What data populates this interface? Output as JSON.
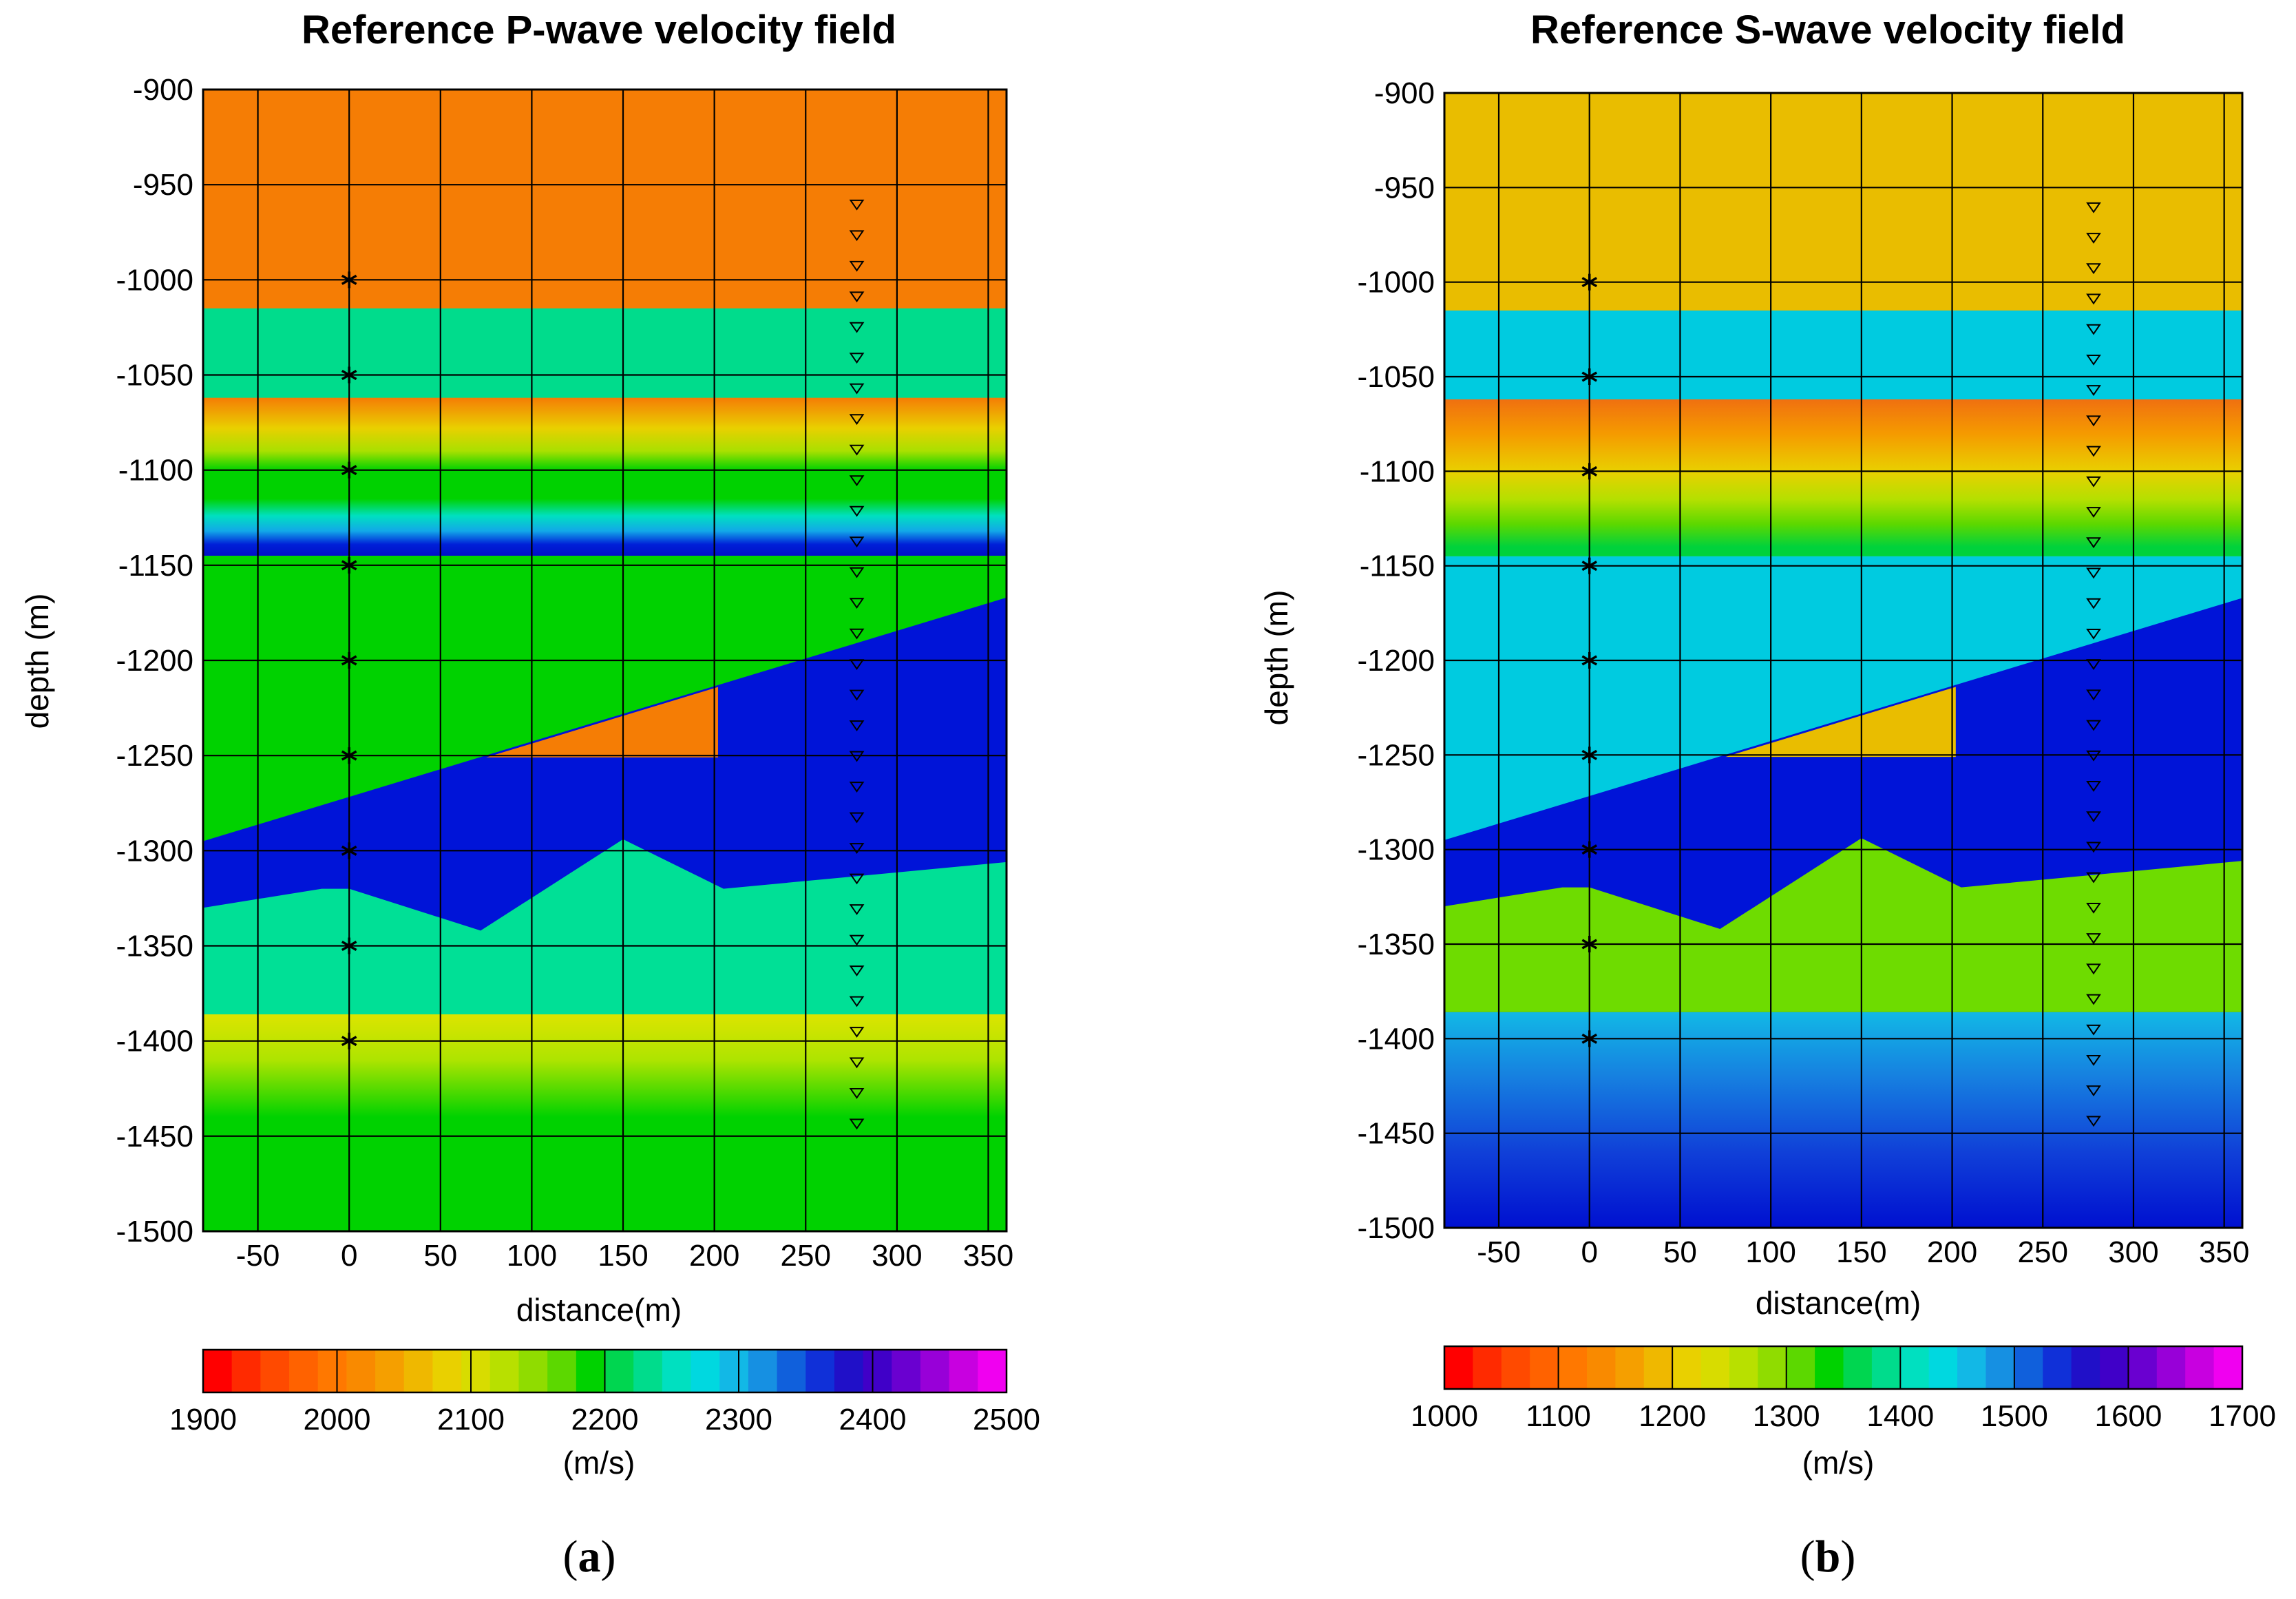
{
  "chart_data": [
    {
      "type": "heatmap",
      "panel": "a",
      "title": "Reference P-wave velocity field",
      "xlabel": "distance(m)",
      "ylabel": "depth (m)",
      "xlim": [
        -80,
        360
      ],
      "ylim": [
        -1500,
        -900
      ],
      "xticks": [
        -50,
        0,
        50,
        100,
        150,
        200,
        250,
        300,
        350
      ],
      "yticks": [
        -900,
        -950,
        -1000,
        -1050,
        -1100,
        -1150,
        -1200,
        -1250,
        -1300,
        -1350,
        -1400,
        -1450,
        -1500
      ],
      "grid": true,
      "colorbar": {
        "label": "(m/s)",
        "range": [
          1900,
          2500
        ],
        "ticks": [
          1900,
          2000,
          2100,
          2200,
          2300,
          2400,
          2500
        ]
      },
      "layers": [
        {
          "name": "top layer",
          "velocity": 2030,
          "color": "#f57d05",
          "top": -900,
          "bottom": -1015
        },
        {
          "name": "second layer",
          "velocity": 2290,
          "color": "#00dc8c",
          "top": -1015,
          "bottom": -1062
        },
        {
          "name": "gradient layer",
          "type": "gradient",
          "top": -1062,
          "bottom": -1145,
          "stops": [
            {
              "depth": -1062,
              "color": "#f57d05"
            },
            {
              "depth": -1078,
              "color": "#e9d000"
            },
            {
              "depth": -1090,
              "color": "#a9e000"
            },
            {
              "depth": -1100,
              "color": "#00d200"
            },
            {
              "depth": -1115,
              "color": "#00d200"
            },
            {
              "depth": -1124,
              "color": "#00e0c0"
            },
            {
              "depth": -1132,
              "color": "#12a8e8"
            },
            {
              "depth": -1139,
              "color": "#0020d8"
            },
            {
              "depth": -1145,
              "color": "#0010c8"
            }
          ]
        },
        {
          "name": "green layer",
          "velocity": 2230,
          "color": "#00d200",
          "top": -1145,
          "bottom": "dipping interface"
        },
        {
          "name": "dipping layer",
          "velocity": 2400,
          "color": "#0014d8",
          "top_line": [
            [
              -80,
              -1295
            ],
            [
              360,
              -1167
            ]
          ]
        },
        {
          "name": "wedge",
          "velocity": 2030,
          "color": "#f57d05",
          "polygon": [
            [
              75,
              -1251
            ],
            [
              202,
              -1214
            ],
            [
              202,
              -1251
            ]
          ]
        },
        {
          "name": "lower layer",
          "velocity": 2290,
          "color": "#00e096",
          "top_line": [
            [
              -80,
              -1330
            ],
            [
              -15,
              -1320
            ],
            [
              0,
              -1320
            ],
            [
              72,
              -1342
            ],
            [
              150,
              -1294
            ],
            [
              205,
              -1320
            ],
            [
              360,
              -1306
            ]
          ],
          "bottom": -1386
        },
        {
          "name": "bottom gradient",
          "type": "gradient",
          "top": -1386,
          "bottom": -1500,
          "stops": [
            {
              "depth": -1386,
              "color": "#dce400"
            },
            {
              "depth": -1410,
              "color": "#aee400"
            },
            {
              "depth": -1440,
              "color": "#00d200"
            },
            {
              "depth": -1500,
              "color": "#00d200"
            }
          ]
        }
      ],
      "sources": {
        "marker": "asterisk",
        "x": 0,
        "depths": [
          -1000,
          -1050,
          -1100,
          -1150,
          -1200,
          -1250,
          -1300,
          -1350,
          -1400
        ]
      },
      "receivers": {
        "marker": "triangle-down",
        "x": 278,
        "from": -960,
        "to": -1443,
        "count": 31
      }
    },
    {
      "type": "heatmap",
      "panel": "b",
      "title": "Reference S-wave velocity field",
      "xlabel": "distance(m)",
      "ylabel": "depth (m)",
      "xlim": [
        -80,
        360
      ],
      "ylim": [
        -1500,
        -900
      ],
      "xticks": [
        -50,
        0,
        50,
        100,
        150,
        200,
        250,
        300,
        350
      ],
      "yticks": [
        -900,
        -950,
        -1000,
        -1050,
        -1100,
        -1150,
        -1200,
        -1250,
        -1300,
        -1350,
        -1400,
        -1450,
        -1500
      ],
      "grid": true,
      "colorbar": {
        "label": "(m/s)",
        "range": [
          1000,
          1700
        ],
        "ticks": [
          1000,
          1100,
          1200,
          1300,
          1400,
          1500,
          1600,
          1700
        ]
      },
      "layers": [
        {
          "name": "top layer",
          "velocity": 1230,
          "color": "#e9bd00",
          "top": -900,
          "bottom": -1015
        },
        {
          "name": "second layer",
          "velocity": 1510,
          "color": "#00cbe0",
          "top": -1015,
          "bottom": -1062
        },
        {
          "name": "gradient layer",
          "type": "gradient",
          "top": -1062,
          "bottom": -1145,
          "stops": [
            {
              "depth": -1062,
              "color": "#f07010"
            },
            {
              "depth": -1080,
              "color": "#f59a00"
            },
            {
              "depth": -1100,
              "color": "#e9d000"
            },
            {
              "depth": -1115,
              "color": "#b4e000"
            },
            {
              "depth": -1128,
              "color": "#5cd800"
            },
            {
              "depth": -1140,
              "color": "#00d23c"
            },
            {
              "depth": -1145,
              "color": "#00d23c"
            }
          ]
        },
        {
          "name": "cyan layer",
          "velocity": 1510,
          "color": "#00cbe0",
          "top": -1145,
          "bottom": "dipping interface"
        },
        {
          "name": "dipping layer",
          "velocity": 1620,
          "color": "#0014d8",
          "top_line": [
            [
              -80,
              -1295
            ],
            [
              360,
              -1167
            ]
          ]
        },
        {
          "name": "wedge",
          "velocity": 1230,
          "color": "#e9bd00",
          "polygon": [
            [
              75,
              -1251
            ],
            [
              202,
              -1214
            ],
            [
              202,
              -1251
            ]
          ]
        },
        {
          "name": "lower layer",
          "velocity": 1360,
          "color": "#6edc00",
          "top_line": [
            [
              -80,
              -1330
            ],
            [
              -15,
              -1320
            ],
            [
              0,
              -1320
            ],
            [
              72,
              -1342
            ],
            [
              150,
              -1294
            ],
            [
              205,
              -1320
            ],
            [
              360,
              -1306
            ]
          ],
          "bottom": -1386
        },
        {
          "name": "bottom gradient",
          "type": "gradient",
          "top": -1386,
          "bottom": -1500,
          "stops": [
            {
              "depth": -1386,
              "color": "#12b8e6"
            },
            {
              "depth": -1420,
              "color": "#1680e0"
            },
            {
              "depth": -1460,
              "color": "#1040d8"
            },
            {
              "depth": -1500,
              "color": "#0010d0"
            }
          ]
        }
      ],
      "sources": {
        "marker": "asterisk",
        "x": 0,
        "depths": [
          -1000,
          -1050,
          -1100,
          -1150,
          -1200,
          -1250,
          -1300,
          -1350,
          -1400
        ]
      },
      "receivers": {
        "marker": "triangle-down",
        "x": 278,
        "from": -960,
        "to": -1443,
        "count": 31
      }
    }
  ],
  "captions": {
    "a": "a",
    "b": "b"
  }
}
